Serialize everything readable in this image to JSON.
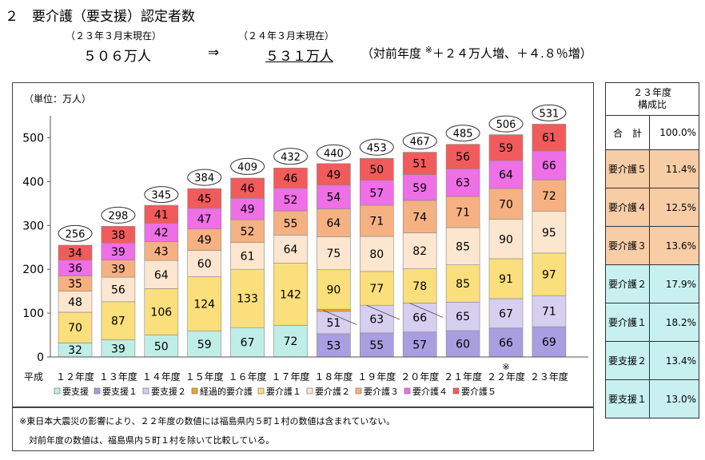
{
  "header": {
    "title": "２　要介護（要支援）認定者数",
    "prev_label": "（２３年３月末現在）",
    "curr_label": "（２４年３月末現在）",
    "prev_total": "５０６万人",
    "arrow": "⇒",
    "curr_total": "５３１万人",
    "yoy_prefix": "（対前年度",
    "yoy_mark": "※",
    "yoy_suffix": "＋２４万人増、＋４.８％増）"
  },
  "chart_data": {
    "type": "bar",
    "stacked": true,
    "unit_label": "（単位：万人）",
    "era_label": "平成",
    "categories": [
      "１２年度",
      "１３年度",
      "１４年度",
      "１５年度",
      "１６年度",
      "１７年度",
      "１８年度",
      "１９年度",
      "２０年度",
      "２１年度",
      "２２年度",
      "２３年度"
    ],
    "category_note": {
      "index": 10,
      "mark": "※"
    },
    "totals": [
      256,
      298,
      345,
      384,
      409,
      432,
      440,
      453,
      467,
      485,
      506,
      531
    ],
    "ylim": [
      0,
      550
    ],
    "yticks": [
      0,
      100,
      200,
      300,
      400,
      500
    ],
    "grid": false,
    "legend_position": "bottom",
    "series": [
      {
        "name": "要支援",
        "color": "#bfeee6",
        "values": [
          32,
          39,
          50,
          59,
          67,
          72,
          null,
          null,
          null,
          null,
          null,
          null
        ]
      },
      {
        "name": "要支援１",
        "color": "#a89ee0",
        "values": [
          null,
          null,
          null,
          null,
          null,
          null,
          53,
          55,
          57,
          60,
          66,
          69
        ]
      },
      {
        "name": "要支援２",
        "color": "#d6cfef",
        "values": [
          null,
          null,
          null,
          null,
          null,
          null,
          51,
          63,
          66,
          65,
          67,
          71
        ]
      },
      {
        "name": "経過的要介護",
        "color": "#eea52c",
        "values": [
          null,
          null,
          null,
          null,
          null,
          null,
          5,
          0,
          0,
          null,
          null,
          null
        ]
      },
      {
        "name": "要介護１",
        "color": "#fbdf7d",
        "values": [
          70,
          87,
          106,
          124,
          133,
          142,
          90,
          77,
          78,
          85,
          91,
          97
        ]
      },
      {
        "name": "要介護２",
        "color": "#fde6cf",
        "values": [
          48,
          56,
          64,
          60,
          61,
          64,
          75,
          80,
          82,
          85,
          90,
          95
        ]
      },
      {
        "name": "要介護３",
        "color": "#f6b182",
        "values": [
          35,
          39,
          43,
          49,
          52,
          55,
          64,
          71,
          74,
          71,
          70,
          72
        ]
      },
      {
        "name": "要介護４",
        "color": "#ee6fe6",
        "values": [
          36,
          39,
          42,
          47,
          49,
          52,
          54,
          57,
          59,
          63,
          64,
          66
        ]
      },
      {
        "name": "要介護５",
        "color": "#f25b5b",
        "values": [
          34,
          38,
          41,
          45,
          46,
          46,
          49,
          50,
          51,
          56,
          59,
          61
        ]
      }
    ]
  },
  "ratio_table": {
    "header": "２３年度\n構成比",
    "rows": [
      {
        "label": "合　計",
        "value": "100.0%",
        "color": "#ffffff"
      },
      {
        "label": "要介護５",
        "value": "11.4%",
        "color": "#f7cda6"
      },
      {
        "label": "要介護４",
        "value": "12.5%",
        "color": "#f7cda6"
      },
      {
        "label": "要介護３",
        "value": "13.6%",
        "color": "#f7cda6"
      },
      {
        "label": "要介護２",
        "value": "17.9%",
        "color": "#c8f0f0"
      },
      {
        "label": "要介護１",
        "value": "18.2%",
        "color": "#c8f0f0"
      },
      {
        "label": "要支援２",
        "value": "13.4%",
        "color": "#c8f0f0"
      },
      {
        "label": "要支援１",
        "value": "13.0%",
        "color": "#c8f0f0"
      }
    ]
  },
  "notes": {
    "line1": "※東日本大震災の影響により、２２年度の数値には福島県内５町１村の数値は含まれていない。",
    "line2": "対前年度の数値は、福島県内５町１村を除いて比較している。"
  }
}
